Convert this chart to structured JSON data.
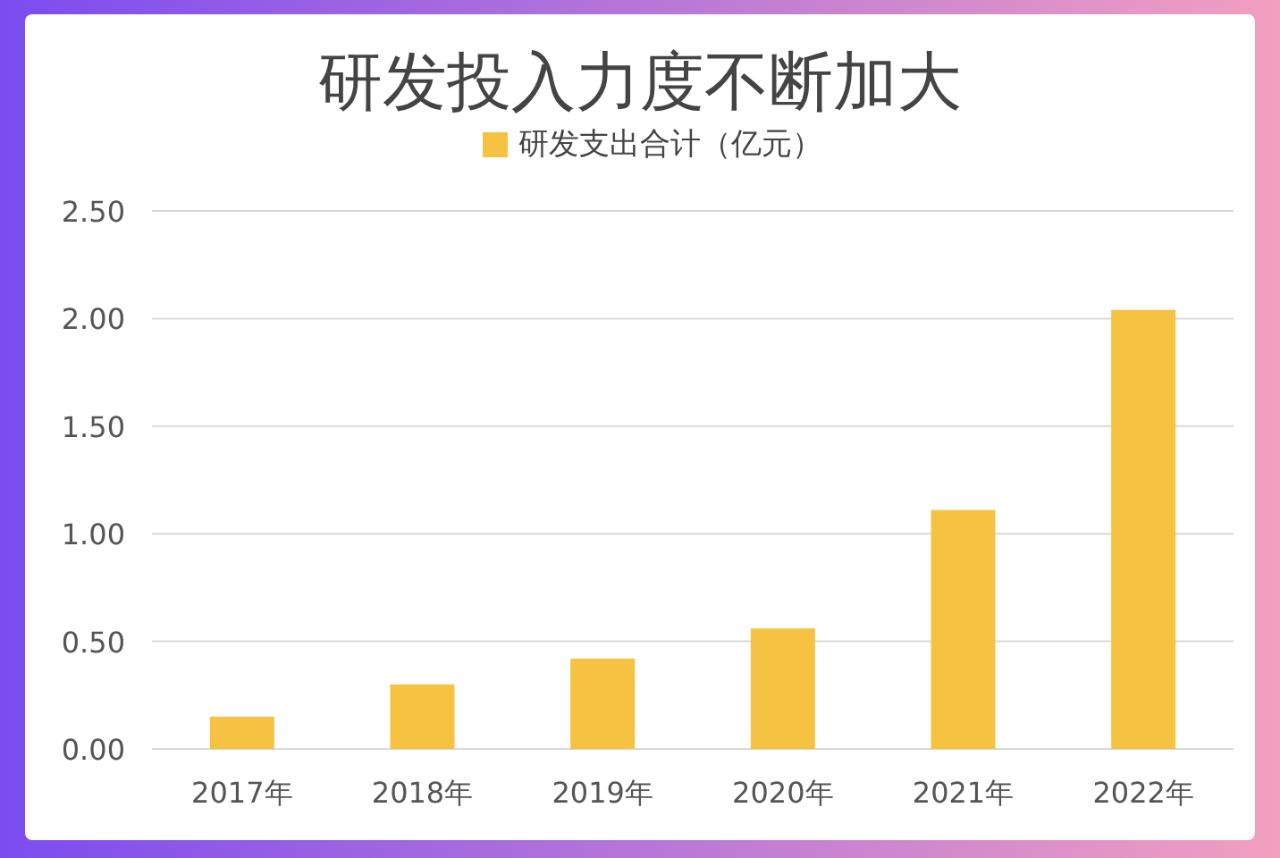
{
  "chart_data": {
    "type": "bar",
    "title": "研发投入力度不断加大",
    "categories": [
      "2017年",
      "2018年",
      "2019年",
      "2020年",
      "2021年",
      "2022年"
    ],
    "series": [
      {
        "name": "研发支出合计（亿元）",
        "color": "#f5c242",
        "values": [
          0.15,
          0.3,
          0.42,
          0.56,
          1.11,
          2.04
        ]
      }
    ],
    "ylim": [
      0,
      2.5
    ],
    "yticks": [
      {
        "value": 0,
        "label": "0.00"
      },
      {
        "value": 0.5,
        "label": "0.50"
      },
      {
        "value": 1,
        "label": "1.00"
      },
      {
        "value": 1.5,
        "label": "1.50"
      },
      {
        "value": 2,
        "label": "2.00"
      },
      {
        "value": 2.5,
        "label": "2.50"
      }
    ],
    "grid": "y",
    "legend": "top"
  }
}
